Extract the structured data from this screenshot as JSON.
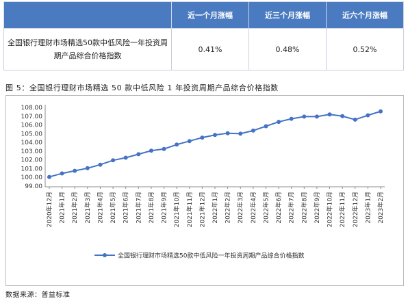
{
  "table": {
    "headers": [
      "",
      "近一个月涨幅",
      "近三个月涨幅",
      "近六个月涨幅"
    ],
    "row": {
      "name": "全国银行理财市场精选50款中低风险一年投资周期产品综合价格指数",
      "values": [
        "0.41%",
        "0.48%",
        "0.52%"
      ]
    }
  },
  "figure_title": "图 5：全国银行理财市场精选 50 款中低风险 1 年投资周期产品综合价格指数",
  "source": "数据来源：普益标准",
  "colors": {
    "line": "#4472c4",
    "header_bg": "#4a7bc0"
  },
  "chart_data": {
    "type": "line",
    "categories": [
      "2020年12月",
      "2021年1月",
      "2021年2月",
      "2021年3月",
      "2021年4月",
      "2021年5月",
      "2021年6月",
      "2021年7月",
      "2021年8月",
      "2021年9月",
      "2021年10月",
      "2021年11月",
      "2021年12月",
      "2022年1月",
      "2022年2月",
      "2022年3月",
      "2022年4月",
      "2022年5月",
      "2022年6月",
      "2022年7月",
      "2022年8月",
      "2022年9月",
      "2022年10月",
      "2022年11月",
      "2022年12月",
      "2023年1月",
      "2023年2月"
    ],
    "series": [
      {
        "name": "全国银行理财市场精选50款中低风险一年投资周期产品综合价格指数",
        "values": [
          100.05,
          100.45,
          100.75,
          101.05,
          101.45,
          101.95,
          102.25,
          102.65,
          103.05,
          103.25,
          103.75,
          104.15,
          104.55,
          104.85,
          105.05,
          105.0,
          105.35,
          105.85,
          106.35,
          106.7,
          106.95,
          106.95,
          107.2,
          107.0,
          106.6,
          107.1,
          107.55
        ]
      }
    ],
    "yticks": [
      "99.00",
      "100.00",
      "101.00",
      "102.00",
      "103.00",
      "104.00",
      "105.00",
      "106.00",
      "107.00",
      "108.00"
    ],
    "ylim": [
      99,
      108
    ],
    "grid": false,
    "legend": "bottom"
  }
}
